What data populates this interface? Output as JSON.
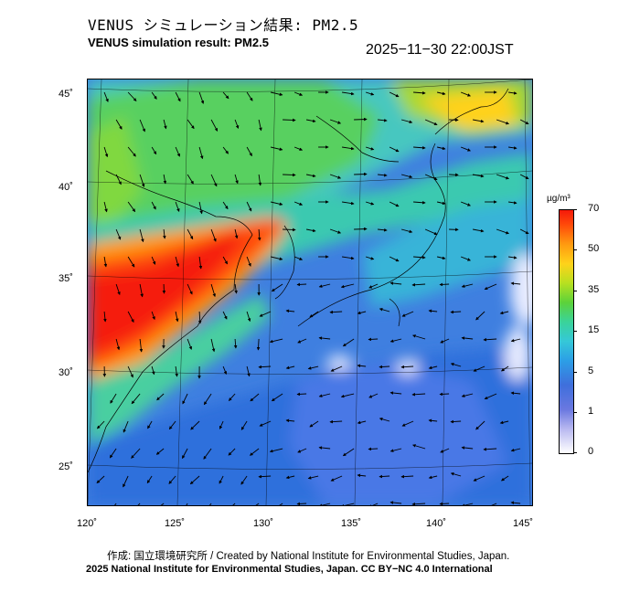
{
  "header": {
    "title_jp": "VENUS シミュレーション結果: PM2.5",
    "title_en": "VENUS simulation result: PM2.5",
    "timestamp": "2025−11−30 22:00JST"
  },
  "map": {
    "lat_ticks": [
      "45˚",
      "40˚",
      "35˚",
      "30˚",
      "25˚"
    ],
    "lon_ticks": [
      "120˚",
      "125˚",
      "130˚",
      "135˚",
      "140˚",
      "145˚"
    ],
    "field": "PM2.5 concentration with wind vectors",
    "colors": {
      "very_high": "#f51a0a",
      "high": "#ff9a10",
      "mid": "#5cd23a",
      "low": "#35c8d8",
      "very_low": "#3f6fdc",
      "clean": "#ffffff"
    }
  },
  "colorbar": {
    "unit": "µg/m³",
    "labels": [
      "70",
      "50",
      "35",
      "15",
      "5",
      "1",
      "0"
    ]
  },
  "credits": {
    "line1": "作成: 国立環境研究所 / Created by National Institute for Environmental Studies, Japan.",
    "line2": "2025 National Institute for Environmental Studies, Japan. CC BY−NC 4.0 International"
  }
}
